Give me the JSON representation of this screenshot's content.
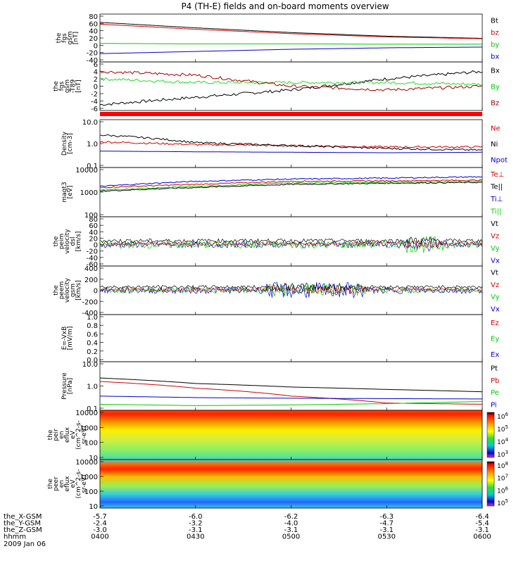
{
  "title": "P4 (TH-E) fields and on-board moments overview",
  "colors": {
    "black": "#000000",
    "red": "#d00000",
    "green": "#00cc00",
    "blue": "#0000cc",
    "darkred": "#a00000",
    "bright_green": "#22dd22"
  },
  "panels": [
    {
      "id": "fgs",
      "ylabel": [
        "the",
        "fgs",
        "gsm",
        "[nT]"
      ],
      "yticks": [
        "80",
        "60",
        "40",
        "20",
        "0",
        "-20",
        "-40"
      ],
      "ylim": [
        -40,
        80
      ],
      "legend": [
        {
          "t": "Bt",
          "c": "black"
        },
        {
          "t": "bz",
          "c": "red"
        },
        {
          "t": "by",
          "c": "green"
        },
        {
          "t": "bx",
          "c": "blue"
        }
      ]
    },
    {
      "id": "fgs_dsbs",
      "ylabel": [
        "the",
        "fgs",
        "gsm",
        "-T89",
        "[nT]"
      ],
      "yticks": [
        "6",
        "4",
        "2",
        "0",
        "-2",
        "-4",
        "-6"
      ],
      "ylim": [
        -6,
        6
      ],
      "legend": [
        {
          "t": "Bx",
          "c": "black"
        },
        {
          "t": "By",
          "c": "green"
        },
        {
          "t": "Bz",
          "c": "darkred"
        }
      ]
    },
    {
      "id": "density",
      "ylabel": [
        "Density",
        "[cm-3]"
      ],
      "yticks": [
        "10.0",
        "1.0",
        "0.1"
      ],
      "ylim": [
        0.1,
        10
      ],
      "legend": [
        {
          "t": "Ne",
          "c": "red"
        },
        {
          "t": "Ni",
          "c": "black"
        },
        {
          "t": "Npot",
          "c": "blue"
        }
      ]
    },
    {
      "id": "temp",
      "ylabel": [
        "magt3",
        "[eV]"
      ],
      "yticks": [
        "10000",
        "1000",
        "100"
      ],
      "ylim": [
        100,
        10000
      ],
      "legend": [
        {
          "t": "Te⊥",
          "c": "red"
        },
        {
          "t": "Te||",
          "c": "black"
        },
        {
          "t": "Ti⊥",
          "c": "blue"
        },
        {
          "t": "Ti||",
          "c": "green"
        }
      ]
    },
    {
      "id": "peim",
      "ylabel": [
        "the",
        "peim",
        "velocity",
        "dsl",
        "[km/s]"
      ],
      "yticks": [
        "80",
        "60",
        "40",
        "20",
        "0",
        "-20",
        "-40",
        "-60"
      ],
      "ylim": [
        -60,
        80
      ],
      "legend": [
        {
          "t": "Vt",
          "c": "black"
        },
        {
          "t": "Vz",
          "c": "red"
        },
        {
          "t": "Vy",
          "c": "green"
        },
        {
          "t": "Vx",
          "c": "blue"
        }
      ]
    },
    {
      "id": "peem",
      "ylabel": [
        "the",
        "peem",
        "velocity",
        "gsm",
        "[km/s]"
      ],
      "yticks": [
        "400",
        "200",
        "0",
        "-200",
        "-400"
      ],
      "ylim": [
        -400,
        400
      ],
      "legend": [
        {
          "t": "Vt",
          "c": "black"
        },
        {
          "t": "Vz",
          "c": "red"
        },
        {
          "t": "Vy",
          "c": "green"
        },
        {
          "t": "Vx",
          "c": "blue"
        }
      ]
    },
    {
      "id": "efield",
      "ylabel": [
        "E=-VxB",
        "[mV/m]"
      ],
      "yticks": [
        "1.0",
        "0.8",
        "0.6",
        "0.4",
        "0.2",
        "0.0"
      ],
      "ylim": [
        0,
        1
      ],
      "legend": [
        {
          "t": "Ez",
          "c": "red"
        },
        {
          "t": "Ey",
          "c": "green"
        },
        {
          "t": "Ex",
          "c": "blue"
        }
      ]
    },
    {
      "id": "pressure",
      "ylabel": [
        "Pressure",
        "[nPa]"
      ],
      "yticks": [
        "10.0",
        "1.0",
        "0.1"
      ],
      "ylim": [
        0.1,
        10
      ],
      "legend": [
        {
          "t": "Pt",
          "c": "black"
        },
        {
          "t": "Pb",
          "c": "red"
        },
        {
          "t": "Pe",
          "c": "green"
        },
        {
          "t": "Pi",
          "c": "blue"
        }
      ]
    },
    {
      "id": "peir",
      "ylabel": [
        "the",
        "peir",
        "en",
        "eflux",
        "eV",
        "(cm^2-s-",
        "sr-eV)"
      ],
      "yticks": [
        "10000",
        "1000",
        "100",
        "10"
      ],
      "colorbar": [
        "10^6",
        "10^5",
        "10^4",
        "10^3"
      ]
    },
    {
      "id": "peer",
      "ylabel": [
        "the",
        "peer",
        "en",
        "eflux",
        "eV",
        "(cm^2-s-",
        "sr-eV)"
      ],
      "yticks": [
        "10000",
        "1000",
        "100",
        "10"
      ],
      "colorbar": [
        "10^8",
        "10^7",
        "10^6",
        "10^5"
      ]
    }
  ],
  "footer": {
    "rows": [
      {
        "label": "the_X-GSM",
        "values": [
          "-5.7",
          "-6.0",
          "-6.2",
          "-6.3",
          "-6.4"
        ]
      },
      {
        "label": "the_Y-GSM",
        "values": [
          "-2.4",
          "-3.2",
          "-4.0",
          "-4.7",
          "-5.4"
        ]
      },
      {
        "label": "the_Z-GSM",
        "values": [
          "-3.0",
          "-3.1",
          "-3.1",
          "-3.1",
          "-3.1"
        ]
      },
      {
        "label": "hhmm",
        "values": [
          "0400",
          "0430",
          "0500",
          "0530",
          "0600"
        ]
      }
    ],
    "date": "2009 Jan 06"
  },
  "chart_data": {
    "type": "line",
    "title": "P4 (TH-E) fields and on-board moments overview",
    "x": [
      "0400",
      "0430",
      "0500",
      "0530",
      "0600"
    ],
    "series": [
      {
        "name": "Bt",
        "panel": "fgs",
        "values": [
          63,
          48,
          35,
          25,
          19
        ]
      },
      {
        "name": "bz",
        "panel": "fgs",
        "values": [
          58,
          44,
          32,
          23,
          18
        ]
      },
      {
        "name": "by",
        "panel": "fgs",
        "values": [
          5,
          4,
          4,
          3,
          3
        ]
      },
      {
        "name": "bx",
        "panel": "fgs",
        "values": [
          -23,
          -17,
          -11,
          -7,
          -5
        ]
      },
      {
        "name": "Bx",
        "panel": "fgs_dsbs",
        "values": [
          -5,
          -3,
          -1,
          2,
          4
        ]
      },
      {
        "name": "By",
        "panel": "fgs_dsbs",
        "values": [
          2,
          1,
          1,
          1,
          0.5
        ]
      },
      {
        "name": "Bz",
        "panel": "fgs_dsbs",
        "values": [
          4,
          3,
          0,
          -1,
          0
        ]
      },
      {
        "name": "Ne",
        "panel": "density",
        "values": [
          1.2,
          0.9,
          0.8,
          0.7,
          0.7
        ]
      },
      {
        "name": "Ni",
        "panel": "density",
        "values": [
          2.5,
          1.1,
          0.8,
          0.6,
          0.5
        ]
      },
      {
        "name": "Npot",
        "panel": "density",
        "values": [
          0.45,
          0.42,
          0.4,
          0.38,
          0.4
        ]
      },
      {
        "name": "Te⊥",
        "panel": "temp",
        "values": [
          1600,
          2200,
          3000,
          3200,
          3400
        ]
      },
      {
        "name": "Te||",
        "panel": "temp",
        "values": [
          1100,
          1600,
          2200,
          2500,
          2700
        ]
      },
      {
        "name": "Ti⊥",
        "panel": "temp",
        "values": [
          1800,
          3000,
          3800,
          4200,
          4800
        ]
      },
      {
        "name": "Ti||",
        "panel": "temp",
        "values": [
          1200,
          1800,
          2500,
          2800,
          3000
        ]
      },
      {
        "name": "Pt",
        "panel": "pressure",
        "values": [
          2.3,
          1.3,
          0.9,
          0.7,
          0.55
        ]
      },
      {
        "name": "Pb",
        "panel": "pressure",
        "values": [
          1.6,
          0.8,
          0.35,
          0.17,
          0.15
        ]
      },
      {
        "name": "Pe",
        "panel": "pressure",
        "values": [
          0.15,
          0.13,
          0.14,
          0.16,
          0.2
        ]
      },
      {
        "name": "Pi",
        "panel": "pressure",
        "values": [
          0.35,
          0.3,
          0.28,
          0.27,
          0.26
        ]
      }
    ]
  }
}
